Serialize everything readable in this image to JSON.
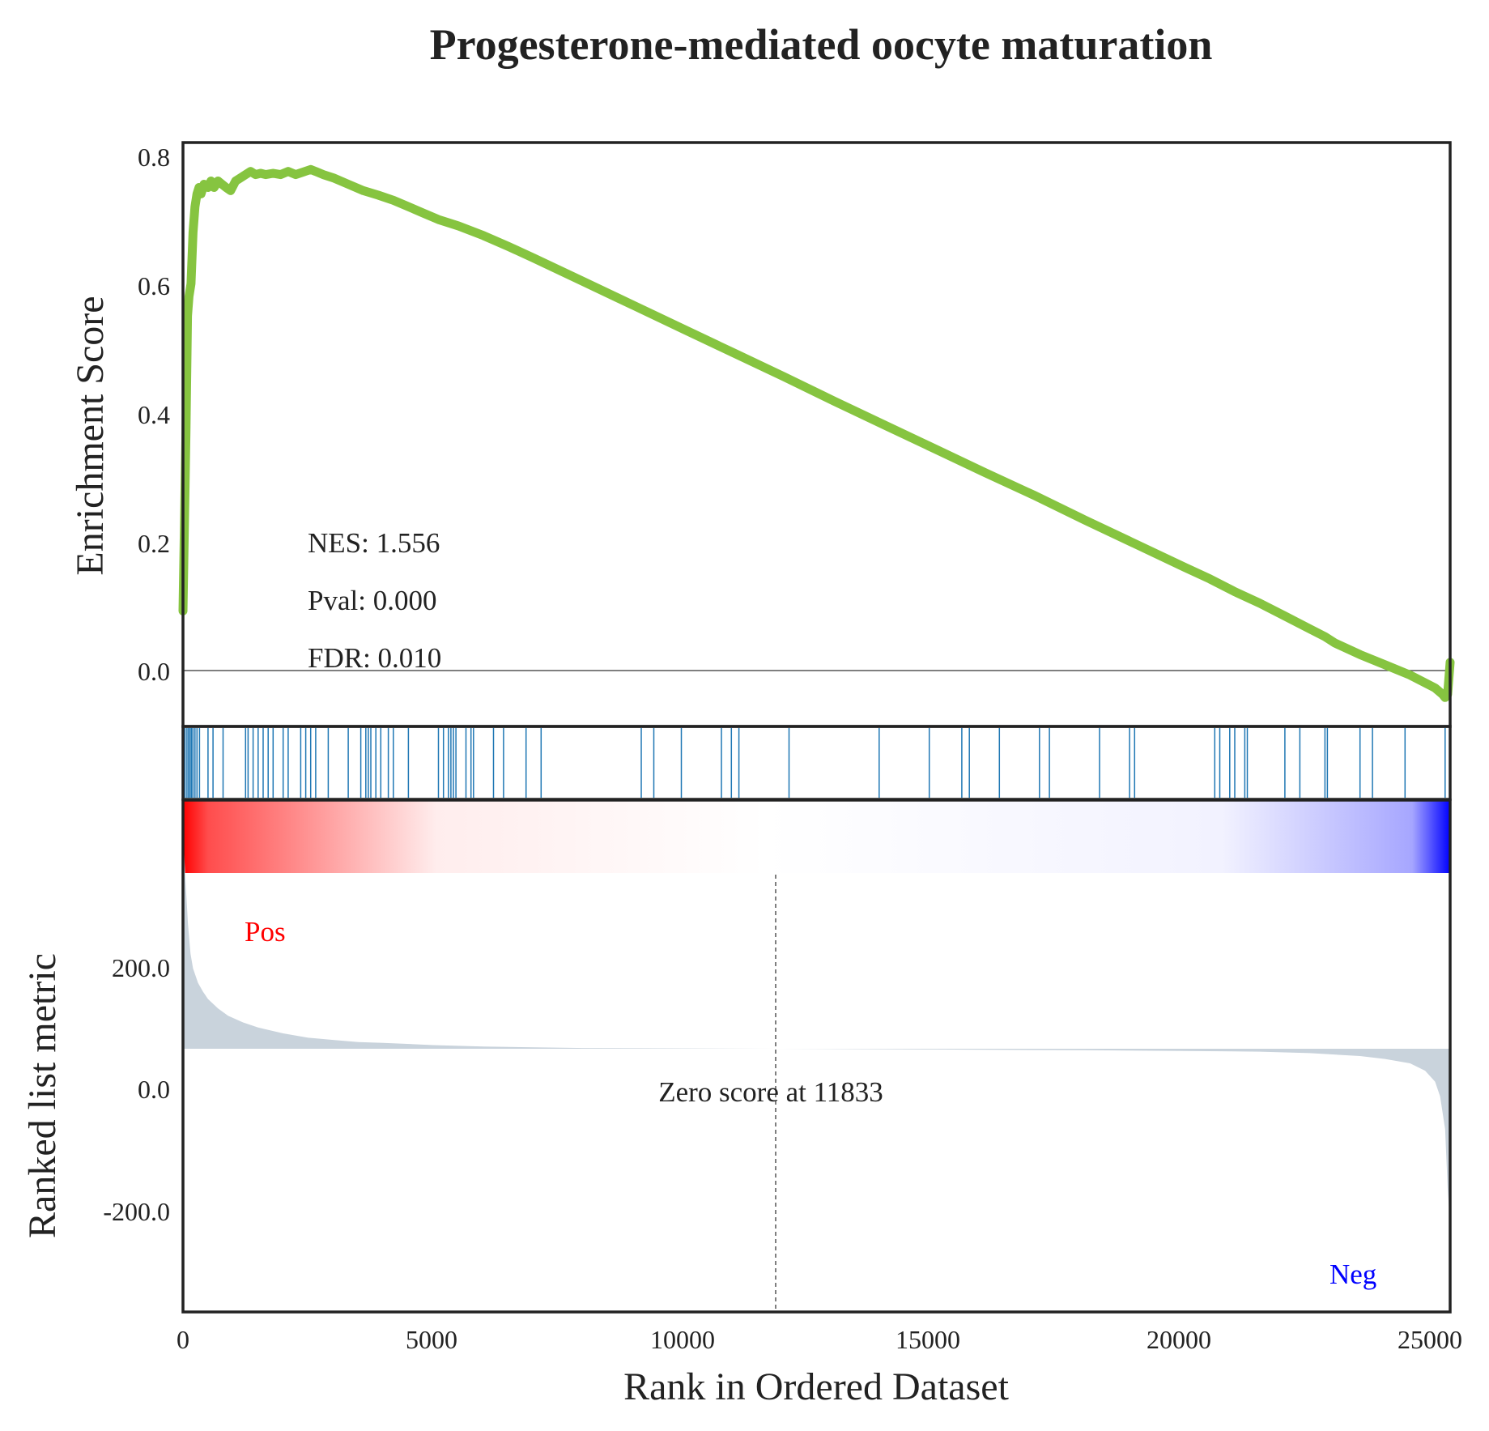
{
  "chart_data": {
    "type": "line",
    "title": "Progesterone-mediated oocyte maturation",
    "xlabel": "Rank in Ordered Dataset",
    "xlim": [
      0,
      25300
    ],
    "x_ticks": [
      "0",
      "5000",
      "10000",
      "15000",
      "20000",
      "25000"
    ],
    "es_panel": {
      "ylabel": "Enrichment Score",
      "ylim": [
        -0.09,
        0.82
      ],
      "y_ticks": [
        "0.0",
        "0.2",
        "0.4",
        "0.6",
        "0.8"
      ],
      "line_color": "#86c440",
      "series": [
        {
          "x": [
            0,
            60,
            90,
            120,
            160,
            200,
            240,
            280,
            320,
            360,
            420,
            500,
            560,
            620,
            700,
            780,
            860,
            950,
            1050,
            1150,
            1250,
            1350,
            1450,
            1550,
            1650,
            1800,
            1950,
            2100,
            2250,
            2400,
            2550,
            2650,
            2800,
            3000,
            3300,
            3600,
            3900,
            4200,
            4500,
            4800,
            5100,
            5500,
            6000,
            6500,
            7000,
            8000,
            9000,
            10000,
            11000,
            12000,
            13000,
            14000,
            15000,
            16000,
            17000,
            18000,
            19000,
            20000,
            20500,
            21000,
            21500,
            22000,
            22500,
            22800,
            23000,
            23500,
            24000,
            24500,
            25000,
            25150,
            25200,
            25250,
            25300
          ],
          "y": [
            0.09,
            0.37,
            0.55,
            0.58,
            0.6,
            0.68,
            0.72,
            0.74,
            0.75,
            0.74,
            0.755,
            0.75,
            0.76,
            0.75,
            0.76,
            0.755,
            0.75,
            0.745,
            0.76,
            0.765,
            0.77,
            0.775,
            0.77,
            0.772,
            0.77,
            0.772,
            0.77,
            0.775,
            0.77,
            0.774,
            0.778,
            0.775,
            0.77,
            0.765,
            0.755,
            0.745,
            0.738,
            0.73,
            0.72,
            0.71,
            0.7,
            0.69,
            0.675,
            0.658,
            0.64,
            0.603,
            0.566,
            0.529,
            0.492,
            0.455,
            0.417,
            0.38,
            0.343,
            0.306,
            0.27,
            0.232,
            0.195,
            0.158,
            0.14,
            0.12,
            0.102,
            0.082,
            0.062,
            0.05,
            0.04,
            0.022,
            0.006,
            -0.01,
            -0.03,
            -0.04,
            -0.045,
            -0.04,
            0.01
          ]
        }
      ],
      "annotations": [
        "NES: 1.556",
        "Pval: 0.000",
        "FDR: 0.010"
      ]
    },
    "hits_panel": {
      "color": "#1f77b4",
      "positions": [
        40,
        80,
        110,
        140,
        170,
        200,
        240,
        280,
        330,
        500,
        600,
        800,
        1250,
        1300,
        1400,
        1500,
        1600,
        1700,
        1800,
        2000,
        2100,
        2350,
        2450,
        2550,
        2650,
        2900,
        3300,
        3550,
        3650,
        3700,
        3750,
        3850,
        3950,
        4100,
        4200,
        4500,
        5100,
        5200,
        5300,
        5350,
        5400,
        5450,
        5650,
        5750,
        5800,
        6200,
        6400,
        6850,
        7150,
        9150,
        9400,
        9950,
        10750,
        10950,
        11100,
        12100,
        13900,
        14900,
        15550,
        15700,
        16300,
        17100,
        17300,
        18300,
        18900,
        19000,
        20600,
        20700,
        20900,
        21000,
        21200,
        21250,
        22000,
        22300,
        22800,
        22850,
        23500,
        23750,
        24400,
        25200
      ]
    },
    "colorbar": {
      "from_color": "#ff0000",
      "to_color": "#0000ff",
      "middle_color": "#ffffff"
    },
    "metric_panel": {
      "ylabel": "Ranked list metric",
      "ylim": [
        -360,
        340
      ],
      "y_ticks": [
        "-200.0",
        "0.0",
        "200.0"
      ],
      "fill_color": "#c9d3dc",
      "series": [
        {
          "x": [
            0,
            50,
            100,
            150,
            200,
            300,
            400,
            500,
            700,
            900,
            1200,
            1500,
            2000,
            2500,
            3000,
            3500,
            4000,
            5000,
            6000,
            8000,
            11833,
            15000,
            18000,
            20000,
            21500,
            22500,
            23500,
            24000,
            24500,
            24800,
            25000,
            25100,
            25200,
            25250,
            25300
          ],
          "y": [
            300,
            230,
            170,
            130,
            110,
            90,
            78,
            68,
            55,
            45,
            36,
            29,
            21,
            15,
            12,
            9,
            8,
            5,
            3,
            1,
            0,
            -1,
            -2,
            -3,
            -4,
            -6,
            -10,
            -14,
            -20,
            -30,
            -45,
            -65,
            -110,
            -190,
            -240
          ]
        }
      ],
      "zero_cross": 11833,
      "zero_label": "Zero score at 11833",
      "pos_label": "Pos",
      "neg_label": "Neg"
    }
  }
}
